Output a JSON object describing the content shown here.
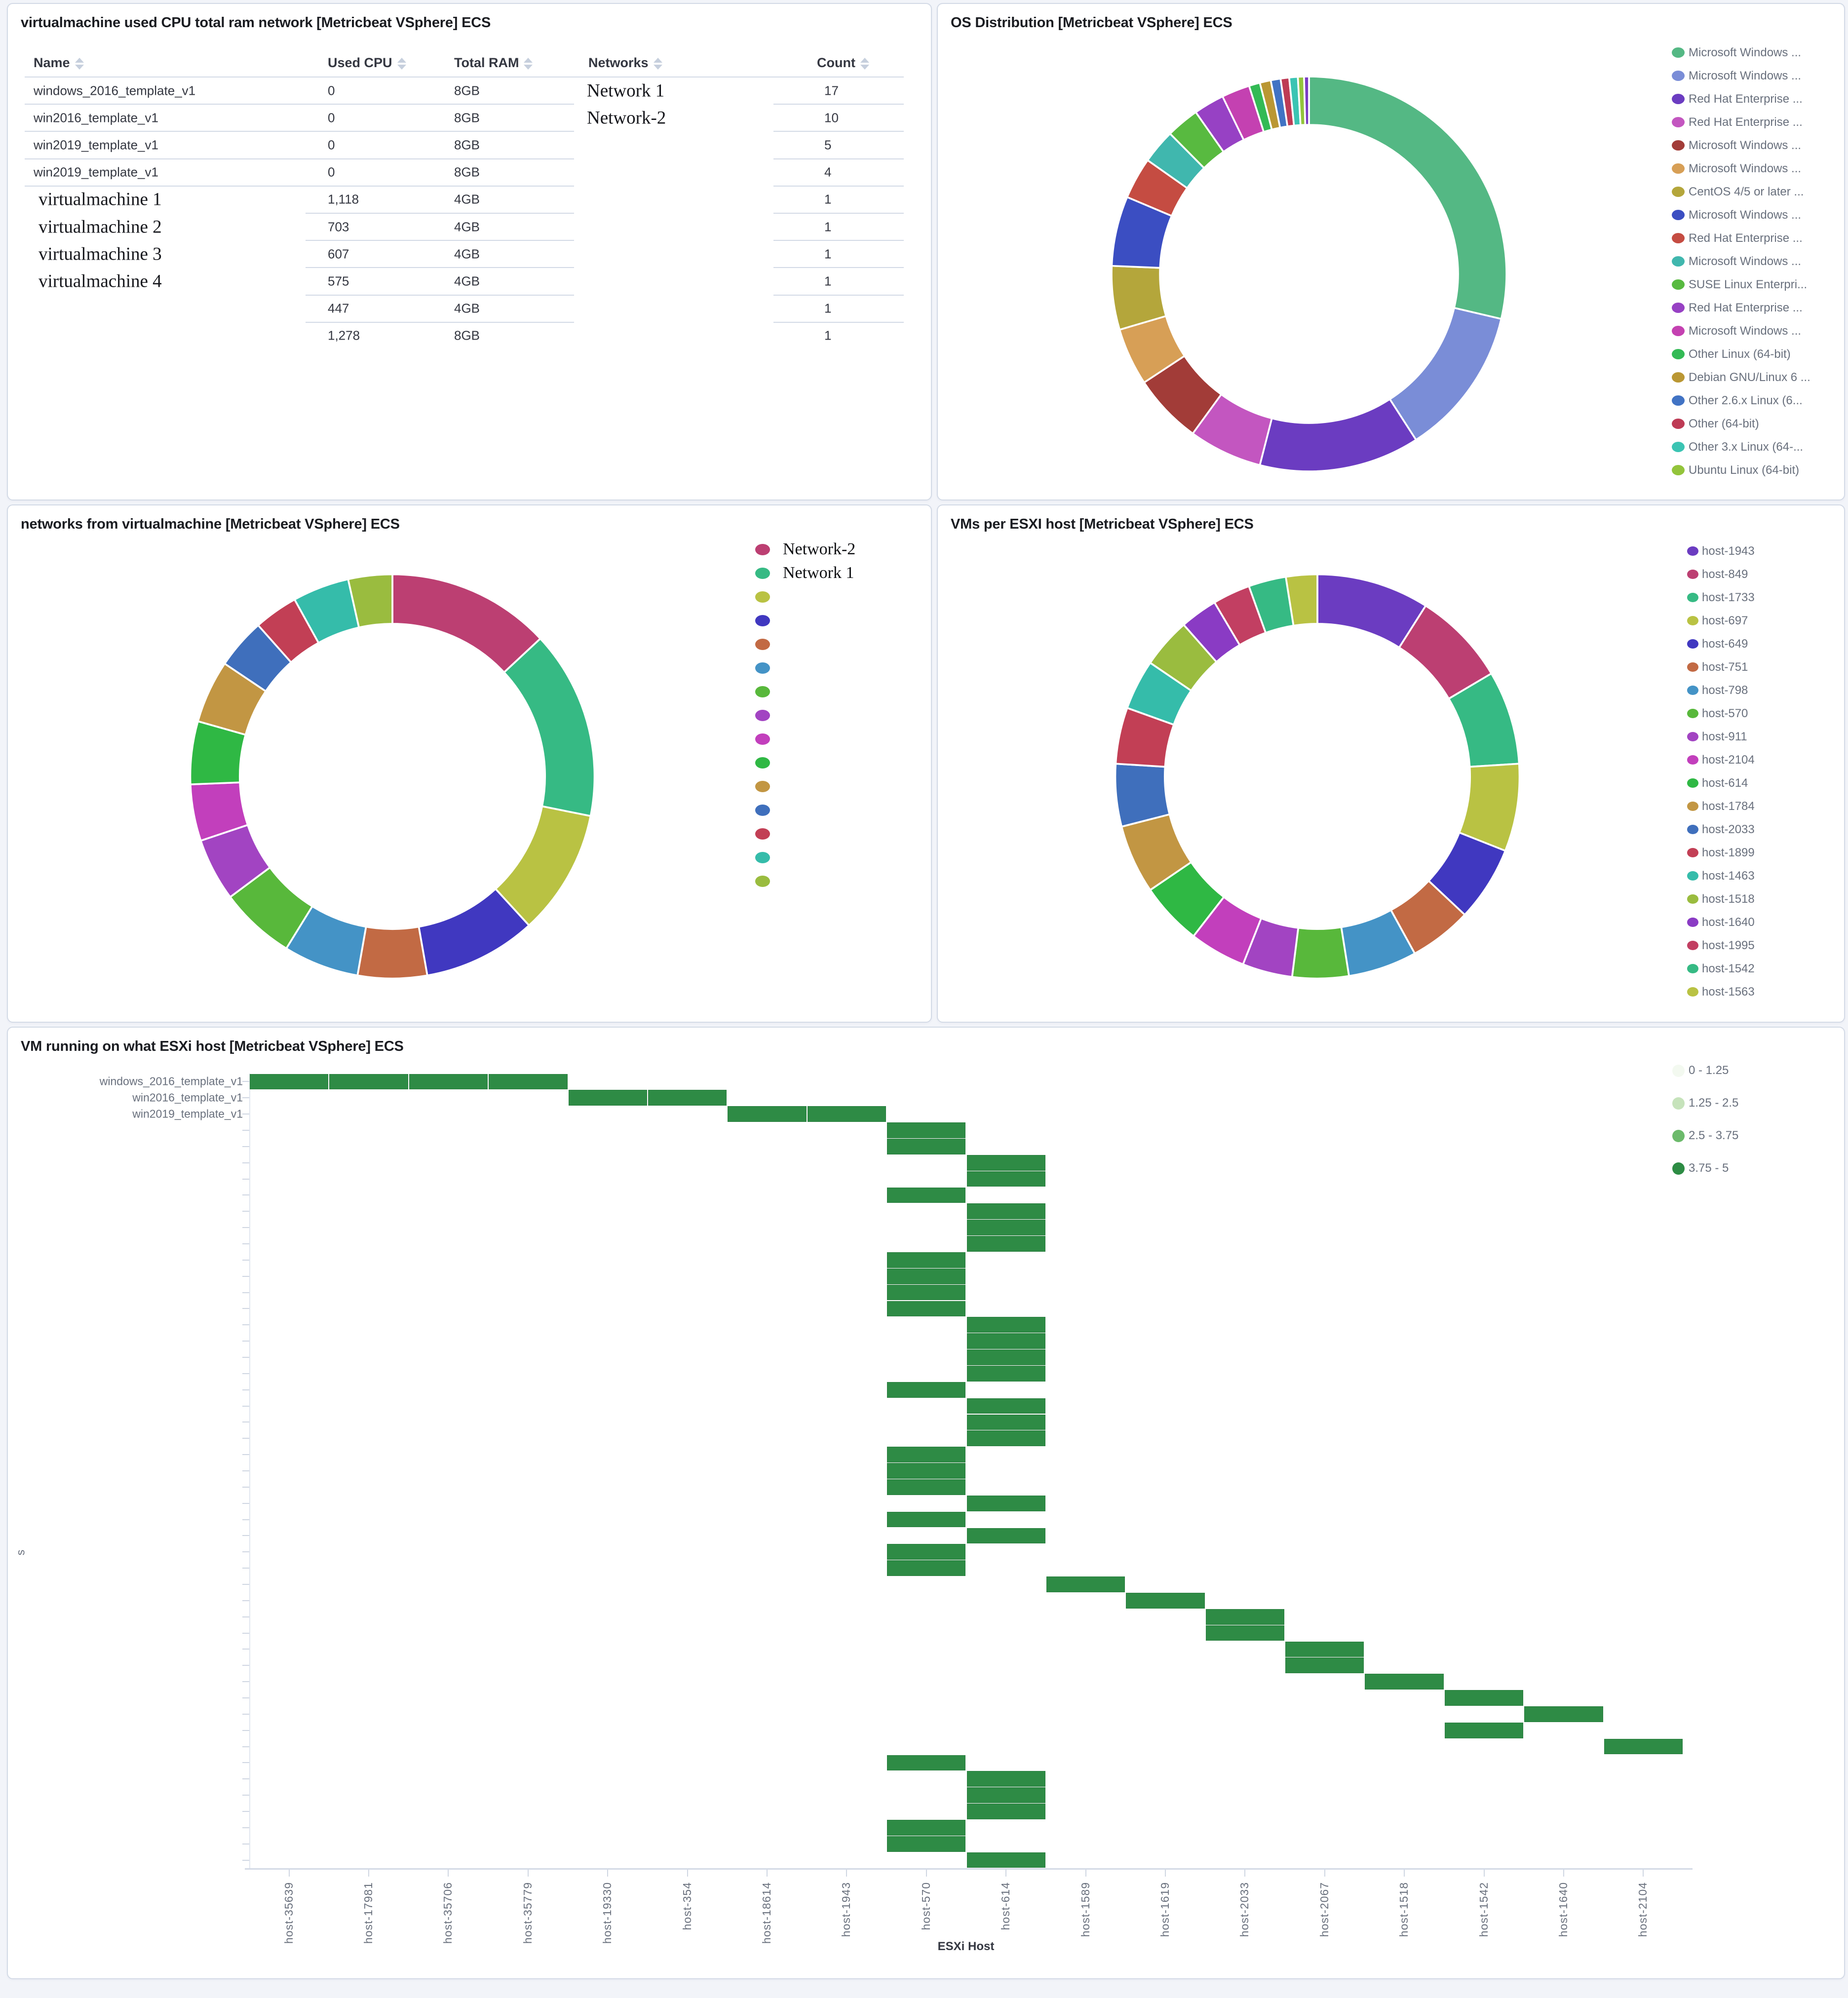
{
  "page": {
    "background": "#f2f4f9",
    "panel_border": "#d3dae6"
  },
  "panels": {
    "table": {
      "title": "virtualmachine used CPU total ram network [Metricbeat VSphere] ECS",
      "headers": [
        "Name",
        "Used CPU",
        "Total RAM",
        "Networks",
        "Count"
      ],
      "rows": [
        {
          "name": "windows_2016_template_v1",
          "cpu": "0",
          "ram": "8GB",
          "network": "Network 1",
          "count": "17",
          "serif_name": false
        },
        {
          "name": "win2016_template_v1",
          "cpu": "0",
          "ram": "8GB",
          "network": "Network-2",
          "count": "10",
          "serif_name": false
        },
        {
          "name": "win2019_template_v1",
          "cpu": "0",
          "ram": "8GB",
          "network": "",
          "count": "5",
          "serif_name": false
        },
        {
          "name": "win2019_template_v1",
          "cpu": "0",
          "ram": "8GB",
          "network": "",
          "count": "4",
          "serif_name": false
        },
        {
          "name": "virtualmachine 1",
          "cpu": "1,118",
          "ram": "4GB",
          "network": "",
          "count": "1",
          "serif_name": true
        },
        {
          "name": "virtualmachine 2",
          "cpu": "703",
          "ram": "4GB",
          "network": "",
          "count": "1",
          "serif_name": true
        },
        {
          "name": "virtualmachine 3",
          "cpu": "607",
          "ram": "4GB",
          "network": "",
          "count": "1",
          "serif_name": true
        },
        {
          "name": "virtualmachine 4",
          "cpu": "575",
          "ram": "4GB",
          "network": "",
          "count": "1",
          "serif_name": true
        },
        {
          "name": "",
          "cpu": "447",
          "ram": "4GB",
          "network": "",
          "count": "1",
          "serif_name": true
        },
        {
          "name": "",
          "cpu": "1,278",
          "ram": "8GB",
          "network": "",
          "count": "1",
          "serif_name": true
        }
      ]
    }
  },
  "chart_data": [
    {
      "type": "pie",
      "subtype": "donut",
      "title": "OS Distribution [Metricbeat VSphere] ECS",
      "legend_position": "right",
      "slices": [
        {
          "label": "Microsoft Windows ...",
          "color": "#54b884",
          "value": 28.6
        },
        {
          "label": "Microsoft Windows ...",
          "color": "#7a8dd7",
          "value": 12.2
        },
        {
          "label": "Red Hat Enterprise ...",
          "color": "#6b3cc1",
          "value": 13.1
        },
        {
          "label": "Red Hat Enterprise ...",
          "color": "#c356c0",
          "value": 6.0
        },
        {
          "label": "Microsoft Windows ...",
          "color": "#a23c38",
          "value": 5.7
        },
        {
          "label": "Microsoft Windows ...",
          "color": "#d79f56",
          "value": 4.7
        },
        {
          "label": "CentOS 4/5 or later ...",
          "color": "#b4a63b",
          "value": 5.2
        },
        {
          "label": "Microsoft Windows ...",
          "color": "#3b4ec2",
          "value": 5.7
        },
        {
          "label": "Red Hat Enterprise ...",
          "color": "#c54c42",
          "value": 3.4
        },
        {
          "label": "Microsoft Windows ...",
          "color": "#40b7ae",
          "value": 2.8
        },
        {
          "label": "SUSE Linux Enterpri...",
          "color": "#58ba40",
          "value": 2.7
        },
        {
          "label": "Red Hat Enterprise ...",
          "color": "#9741c4",
          "value": 2.5
        },
        {
          "label": "Microsoft Windows ...",
          "color": "#c441b1",
          "value": 2.3
        },
        {
          "label": "Other Linux (64-bit)",
          "color": "#33ba55",
          "value": 0.9
        },
        {
          "label": "Debian GNU/Linux 6 ...",
          "color": "#ba9733",
          "value": 0.9
        },
        {
          "label": "Other 2.6.x Linux (6...",
          "color": "#4173c4",
          "value": 0.8
        },
        {
          "label": "Other (64-bit)",
          "color": "#be3b55",
          "value": 0.7
        },
        {
          "label": "Other 3.x Linux (64-...",
          "color": "#3bc4b3",
          "value": 0.7
        },
        {
          "label": "Ubuntu Linux (64-bit)",
          "color": "#93c43b",
          "value": 0.5
        },
        {
          "label": "",
          "color": "#7a3bc4",
          "value": 0.4,
          "in_legend": false
        }
      ]
    },
    {
      "type": "pie",
      "subtype": "donut",
      "title": "networks from virtualmachine [Metricbeat VSphere] ECS",
      "legend_position": "right",
      "slices": [
        {
          "label": "Network-2",
          "color": "#bc3f72",
          "value": 13,
          "serif": true
        },
        {
          "label": "Network 1",
          "color": "#36ba84",
          "value": 15,
          "serif": true
        },
        {
          "label": "",
          "color": "#b9c243",
          "value": 10
        },
        {
          "label": "",
          "color": "#4038c0",
          "value": 9
        },
        {
          "label": "",
          "color": "#c26a44",
          "value": 5.5
        },
        {
          "label": "",
          "color": "#4493c6",
          "value": 6
        },
        {
          "label": "",
          "color": "#58b83b",
          "value": 6
        },
        {
          "label": "",
          "color": "#a244c2",
          "value": 5
        },
        {
          "label": "",
          "color": "#c23fbc",
          "value": 4.5
        },
        {
          "label": "",
          "color": "#2fb844",
          "value": 5
        },
        {
          "label": "",
          "color": "#c29643",
          "value": 5
        },
        {
          "label": "",
          "color": "#3f6fbc",
          "value": 4
        },
        {
          "label": "",
          "color": "#c23f55",
          "value": 3.5
        },
        {
          "label": "",
          "color": "#35bcaa",
          "value": 4.5
        },
        {
          "label": "",
          "color": "#9abc3f",
          "value": 3.5
        }
      ]
    },
    {
      "type": "pie",
      "subtype": "donut",
      "title": "VMs per ESXI host [Metricbeat VSphere] ECS",
      "legend_position": "right",
      "slices": [
        {
          "label": "host-1943",
          "color": "#6b3cc1",
          "value": 9
        },
        {
          "label": "host-849",
          "color": "#bc3f72",
          "value": 7.5
        },
        {
          "label": "host-1733",
          "color": "#36ba84",
          "value": 7.5
        },
        {
          "label": "host-697",
          "color": "#b9c243",
          "value": 7
        },
        {
          "label": "host-649",
          "color": "#4038c0",
          "value": 6
        },
        {
          "label": "host-751",
          "color": "#c26a44",
          "value": 5
        },
        {
          "label": "host-798",
          "color": "#4493c6",
          "value": 5.5
        },
        {
          "label": "host-570",
          "color": "#58b83b",
          "value": 4.5
        },
        {
          "label": "host-911",
          "color": "#a244c2",
          "value": 4
        },
        {
          "label": "host-2104",
          "color": "#c23fbc",
          "value": 4.5
        },
        {
          "label": "host-614",
          "color": "#2fb844",
          "value": 5
        },
        {
          "label": "host-1784",
          "color": "#c29643",
          "value": 5.5
        },
        {
          "label": "host-2033",
          "color": "#3f6fbc",
          "value": 5
        },
        {
          "label": "host-1899",
          "color": "#c23f55",
          "value": 4.5
        },
        {
          "label": "host-1463",
          "color": "#35bcaa",
          "value": 4
        },
        {
          "label": "host-1518",
          "color": "#9abc3f",
          "value": 4
        },
        {
          "label": "host-1640",
          "color": "#8a3bc4",
          "value": 3
        },
        {
          "label": "host-1995",
          "color": "#c23f62",
          "value": 3
        },
        {
          "label": "host-1542",
          "color": "#36ba84",
          "value": 3
        },
        {
          "label": "host-1563",
          "color": "#b9c243",
          "value": 2.5
        }
      ]
    },
    {
      "type": "heatmap",
      "title": "VM running on what ESXi host [Metricbeat VSphere] ECS",
      "xlabel": "ESXi Host",
      "ylabel_truncated": "s",
      "x_categories": [
        "host-35639",
        "host-17981",
        "host-35706",
        "host-35779",
        "host-19330",
        "host-354",
        "host-18614",
        "host-1943",
        "host-570",
        "host-614",
        "host-1589",
        "host-1619",
        "host-2033",
        "host-2067",
        "host-1518",
        "host-1542",
        "host-1640",
        "host-2104"
      ],
      "y_labeled_rows": [
        "windows_2016_template_v1",
        "win2016_template_v1",
        "win2019_template_v1"
      ],
      "n_rows": 49,
      "cell_color": "#2e8b45",
      "cell_bucket": "3.75 - 5",
      "legend": [
        {
          "label": "0 - 1.25",
          "color": "#f3f9f0"
        },
        {
          "label": "1.25 - 2.5",
          "color": "#c6e3bb"
        },
        {
          "label": "2.5 - 3.75",
          "color": "#6cba6b"
        },
        {
          "label": "3.75 - 5",
          "color": "#2d8c44"
        }
      ],
      "cells": [
        [
          1,
          1
        ],
        [
          1,
          2
        ],
        [
          1,
          3
        ],
        [
          1,
          4
        ],
        [
          2,
          5
        ],
        [
          2,
          6
        ],
        [
          3,
          7
        ],
        [
          3,
          8
        ],
        [
          4,
          9
        ],
        [
          5,
          9
        ],
        [
          6,
          10
        ],
        [
          7,
          10
        ],
        [
          8,
          9
        ],
        [
          9,
          10
        ],
        [
          10,
          10
        ],
        [
          11,
          10
        ],
        [
          12,
          9
        ],
        [
          13,
          9
        ],
        [
          14,
          9
        ],
        [
          15,
          9
        ],
        [
          16,
          10
        ],
        [
          17,
          10
        ],
        [
          18,
          10
        ],
        [
          19,
          10
        ],
        [
          20,
          9
        ],
        [
          21,
          10
        ],
        [
          22,
          10
        ],
        [
          23,
          10
        ],
        [
          24,
          9
        ],
        [
          25,
          9
        ],
        [
          26,
          9
        ],
        [
          27,
          10
        ],
        [
          28,
          9
        ],
        [
          29,
          10
        ],
        [
          30,
          9
        ],
        [
          31,
          9
        ],
        [
          32,
          11
        ],
        [
          33,
          12
        ],
        [
          34,
          13
        ],
        [
          35,
          13
        ],
        [
          36,
          14
        ],
        [
          37,
          14
        ],
        [
          38,
          15
        ],
        [
          39,
          16
        ],
        [
          40,
          17
        ],
        [
          41,
          16
        ],
        [
          42,
          18
        ],
        [
          43,
          9
        ],
        [
          44,
          10
        ],
        [
          45,
          10
        ],
        [
          46,
          10
        ],
        [
          47,
          9
        ],
        [
          48,
          9
        ],
        [
          49,
          10
        ]
      ]
    }
  ]
}
